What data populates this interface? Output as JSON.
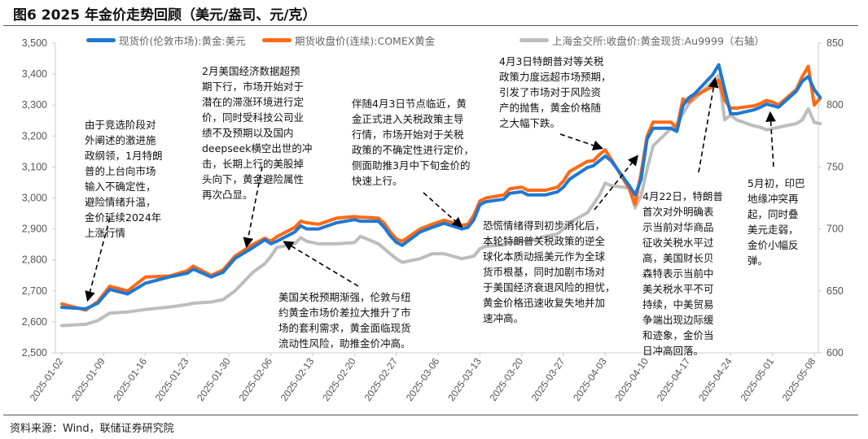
{
  "title": "图6  2025 年金价走势回顾（美元/盎司、元/克）",
  "source": "资料来源：Wind，联储证券研究院",
  "colors": {
    "spot": "#1f78d1",
    "futures": "#ff6a13",
    "sge": "#bdbdbd",
    "arrow": "#000000"
  },
  "annotations": [
    {
      "lines": [
        "由于竞选阶段对",
        "外阐述的激进施",
        "政纲领，1月特朗",
        "普的上台向市场",
        "输入不确定性，",
        "避险情绪升温，",
        "金价延续2024年",
        "上涨行情"
      ]
    },
    {
      "lines": [
        "2月美国经济数据超预",
        "期下行，市场开始对于",
        "潜在的滞涨环境进行定",
        "价，同时受科技公司业",
        "绩不及预期以及国内",
        "deepseek横空出世的冲",
        "击，长期上行的美股掉",
        "头向下，黄金避险属性",
        "再次凸显。"
      ]
    },
    {
      "lines": [
        "伴随4月3日节点临近，黄",
        "金正式进入关税政策主导",
        "行情，市场开始对于关税",
        "政策的不确定性进行定价，",
        "侧面助推3月中下旬金价的",
        "快速上行。"
      ]
    },
    {
      "lines": [
        "4月3日特朗普对等关税",
        "政策力度远超市场预期，",
        "引发了市场对于风险资",
        "产的抛售，黄金价格随",
        "之大幅下跌。"
      ]
    },
    {
      "lines": [
        "美国关税预期渐强，伦敦与纽",
        "约黄金市场价差拉大推升了市",
        "场的套利需求，黄金面临现货",
        "流动性风险，助推金价冲高。"
      ]
    },
    {
      "lines": [
        "恐慌情绪得到初步消化后，",
        "本轮特朗普关税政策的逆全",
        "球化本质动摇美元作为全球",
        "货币根基，同时加剧市场对",
        "于美国经济衰退风险的担忧，",
        "黄金价格迅速收复失地并加",
        "速冲高。"
      ]
    },
    {
      "lines": [
        "4月22日，特朗普",
        "首次对外明确表",
        "示当前对华商品",
        "征收关税水平过",
        "高，美国财长贝",
        "森特表示当前中",
        "美关税水平不可",
        "持续，中美贸易",
        "争端出现边际缓",
        "和迹象，金价当",
        "日冲高回落。"
      ]
    },
    {
      "lines": [
        "5月初，印巴",
        "地缘冲突再",
        "起，同时叠",
        "美元走弱，",
        "金价小幅反",
        "弹。"
      ]
    }
  ],
  "chart_data": {
    "type": "line",
    "title": "",
    "grid": false,
    "legend": "top",
    "x_ticks": [
      "2025-01-02",
      "2025-01-09",
      "2025-01-16",
      "2025-01-23",
      "2025-01-30",
      "2025-02-06",
      "2025-02-13",
      "2025-02-20",
      "2025-02-27",
      "2025-03-06",
      "2025-03-13",
      "2025-03-20",
      "2025-03-27",
      "2025-04-03",
      "2025-04-10",
      "2025-04-17",
      "2025-04-24",
      "2025-05-01",
      "2025-05-08"
    ],
    "y_left": {
      "ticks": [
        "2,500",
        "2,600",
        "2,700",
        "2,800",
        "2,900",
        "3,000",
        "3,100",
        "3,200",
        "3,300",
        "3,400",
        "3,500"
      ],
      "range": [
        2500,
        3500
      ]
    },
    "y_right": {
      "ticks": [
        "600",
        "650",
        "700",
        "750",
        "800",
        "850"
      ],
      "range": [
        600,
        850
      ]
    },
    "x": [
      "2025-01-02",
      "2025-01-06",
      "2025-01-08",
      "2025-01-10",
      "2025-01-13",
      "2025-01-16",
      "2025-01-20",
      "2025-01-23",
      "2025-01-24",
      "2025-01-27",
      "2025-01-29",
      "2025-01-31",
      "2025-02-03",
      "2025-02-05",
      "2025-02-06",
      "2025-02-07",
      "2025-02-10",
      "2025-02-11",
      "2025-02-12",
      "2025-02-14",
      "2025-02-17",
      "2025-02-20",
      "2025-02-21",
      "2025-02-24",
      "2025-02-25",
      "2025-02-26",
      "2025-02-27",
      "2025-02-28",
      "2025-03-03",
      "2025-03-05",
      "2025-03-07",
      "2025-03-10",
      "2025-03-11",
      "2025-03-12",
      "2025-03-13",
      "2025-03-14",
      "2025-03-17",
      "2025-03-18",
      "2025-03-20",
      "2025-03-21",
      "2025-03-24",
      "2025-03-26",
      "2025-03-27",
      "2025-03-28",
      "2025-03-31",
      "2025-04-01",
      "2025-04-02",
      "2025-04-03",
      "2025-04-04",
      "2025-04-07",
      "2025-04-08",
      "2025-04-09",
      "2025-04-10",
      "2025-04-11",
      "2025-04-14",
      "2025-04-15",
      "2025-04-16",
      "2025-04-17",
      "2025-04-18",
      "2025-04-21",
      "2025-04-22",
      "2025-04-23",
      "2025-04-24",
      "2025-04-25",
      "2025-04-28",
      "2025-04-29",
      "2025-04-30",
      "2025-05-01",
      "2025-05-02",
      "2025-05-05",
      "2025-05-06",
      "2025-05-07",
      "2025-05-08",
      "2025-05-09"
    ],
    "series": [
      {
        "name": "现货价(伦敦市场):黄金:美元",
        "axis": "left",
        "color": "#1f78d1",
        "values": [
          2647,
          2642,
          2660,
          2705,
          2690,
          2725,
          2745,
          2757,
          2770,
          2745,
          2760,
          2805,
          2840,
          2865,
          2852,
          2860,
          2890,
          2910,
          2900,
          2900,
          2920,
          2930,
          2925,
          2925,
          2905,
          2878,
          2857,
          2847,
          2890,
          2905,
          2918,
          2900,
          2905,
          2930,
          2978,
          2988,
          2996,
          3015,
          3020,
          3010,
          3010,
          3020,
          3035,
          3060,
          3098,
          3104,
          3120,
          3135,
          3120,
          3040,
          3010,
          3060,
          3190,
          3225,
          3225,
          3215,
          3298,
          3324,
          3337,
          3398,
          3430,
          3350,
          3272,
          3272,
          3285,
          3293,
          3303,
          3298,
          3293,
          3345,
          3377,
          3392,
          3350,
          3324
        ]
      },
      {
        "name": "期货收盘价(连续):COMEX黄金",
        "axis": "left",
        "color": "#ff6a13",
        "values": [
          2658,
          2638,
          2665,
          2715,
          2700,
          2745,
          2748,
          2765,
          2780,
          2750,
          2768,
          2812,
          2850,
          2870,
          2860,
          2875,
          2905,
          2925,
          2920,
          2915,
          2935,
          2940,
          2938,
          2935,
          2918,
          2890,
          2868,
          2860,
          2900,
          2915,
          2928,
          2912,
          2915,
          2945,
          2990,
          3000,
          3010,
          3030,
          3035,
          3025,
          3025,
          3035,
          3055,
          3085,
          3118,
          3120,
          3140,
          3155,
          3125,
          3030,
          2980,
          3080,
          3200,
          3245,
          3245,
          3225,
          3320,
          3310,
          3330,
          3360,
          3380,
          3315,
          3290,
          3290,
          3298,
          3305,
          3315,
          3310,
          3300,
          3350,
          3392,
          3425,
          3300,
          3322
        ]
      },
      {
        "name": "上海金交所:收盘价:黄金现货:Au9999（右轴）",
        "axis": "right",
        "color": "#bdbdbd",
        "values": [
          622,
          623,
          626,
          632,
          633,
          635,
          637,
          639,
          640,
          641,
          643,
          650,
          665,
          672,
          678,
          685,
          688,
          693,
          690,
          688,
          688,
          689,
          694,
          688,
          684,
          680,
          676,
          673,
          676,
          680,
          680,
          676,
          677,
          678,
          684,
          686,
          687,
          689,
          690,
          690,
          694,
          696,
          700,
          705,
          713,
          720,
          727,
          737,
          735,
          733,
          717,
          727,
          748,
          767,
          781,
          785,
          793,
          801,
          805,
          819,
          824,
          788,
          792,
          788,
          783,
          782,
          780,
          781,
          782,
          785,
          788,
          797,
          786,
          785
        ]
      }
    ]
  }
}
